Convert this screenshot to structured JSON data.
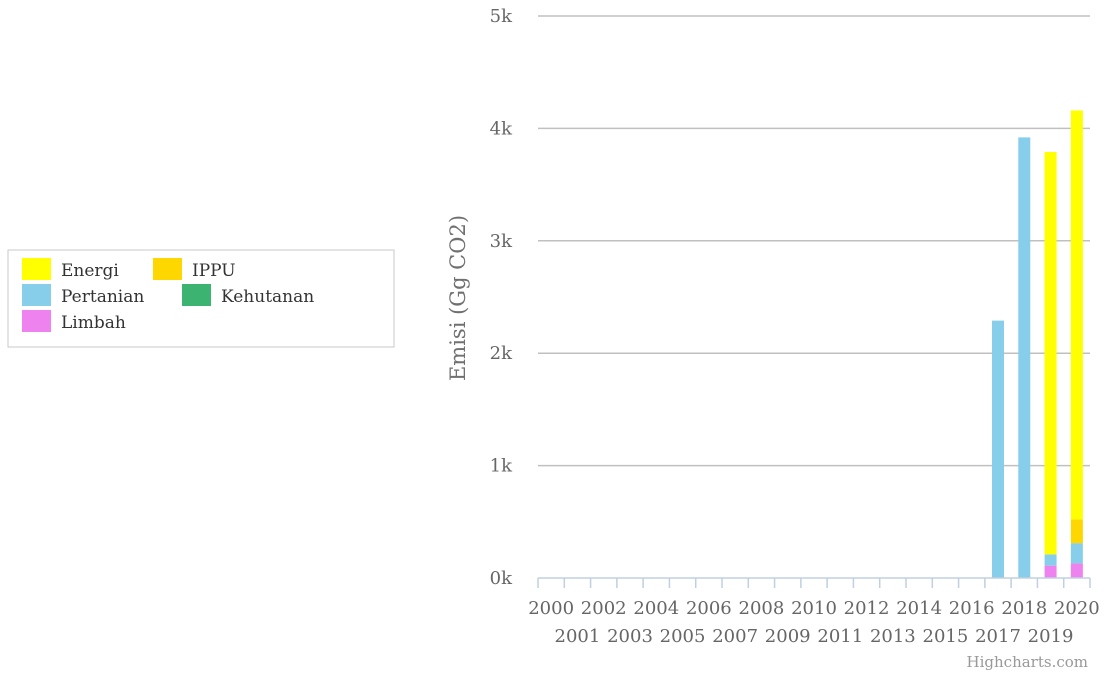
{
  "chart_data": {
    "type": "bar",
    "stacked": true,
    "categories": [
      "2000",
      "2001",
      "2002",
      "2003",
      "2004",
      "2005",
      "2006",
      "2007",
      "2008",
      "2009",
      "2010",
      "2011",
      "2012",
      "2013",
      "2014",
      "2015",
      "2016",
      "2017",
      "2018",
      "2019",
      "2020"
    ],
    "series": [
      {
        "name": "Energi",
        "color": "#FFFF00",
        "values": [
          0,
          0,
          0,
          0,
          0,
          0,
          0,
          0,
          0,
          0,
          0,
          0,
          0,
          0,
          0,
          0,
          0,
          0,
          0,
          3580,
          3640
        ]
      },
      {
        "name": "IPPU",
        "color": "#FFD700",
        "values": [
          0,
          0,
          0,
          0,
          0,
          0,
          0,
          0,
          0,
          0,
          0,
          0,
          0,
          0,
          0,
          0,
          0,
          0,
          0,
          0,
          210
        ]
      },
      {
        "name": "Pertanian",
        "color": "#87CEEB",
        "values": [
          0,
          0,
          0,
          0,
          0,
          0,
          0,
          0,
          0,
          0,
          0,
          0,
          0,
          0,
          0,
          0,
          0,
          2290,
          3920,
          100,
          180
        ]
      },
      {
        "name": "Kehutanan",
        "color": "#3CB371",
        "values": [
          0,
          0,
          0,
          0,
          0,
          0,
          0,
          0,
          0,
          0,
          0,
          0,
          0,
          0,
          0,
          0,
          0,
          0,
          0,
          0,
          0
        ]
      },
      {
        "name": "Limbah",
        "color": "#EE82EE",
        "values": [
          0,
          0,
          0,
          0,
          0,
          0,
          0,
          0,
          0,
          0,
          0,
          0,
          0,
          0,
          0,
          0,
          0,
          0,
          0,
          110,
          130
        ]
      }
    ],
    "stack_order": [
      "Limbah",
      "Kehutanan",
      "Pertanian",
      "IPPU",
      "Energi"
    ],
    "ylabel": "Emisi (Gg CO2)",
    "ylim": [
      0,
      5000
    ],
    "yticks": [
      {
        "value": 0,
        "label": "0k"
      },
      {
        "value": 1000,
        "label": "1k"
      },
      {
        "value": 2000,
        "label": "2k"
      },
      {
        "value": 3000,
        "label": "3k"
      },
      {
        "value": 4000,
        "label": "4k"
      },
      {
        "value": 5000,
        "label": "5k"
      }
    ],
    "grid": true,
    "legend_position": "left"
  },
  "credits": "Highcharts.com"
}
